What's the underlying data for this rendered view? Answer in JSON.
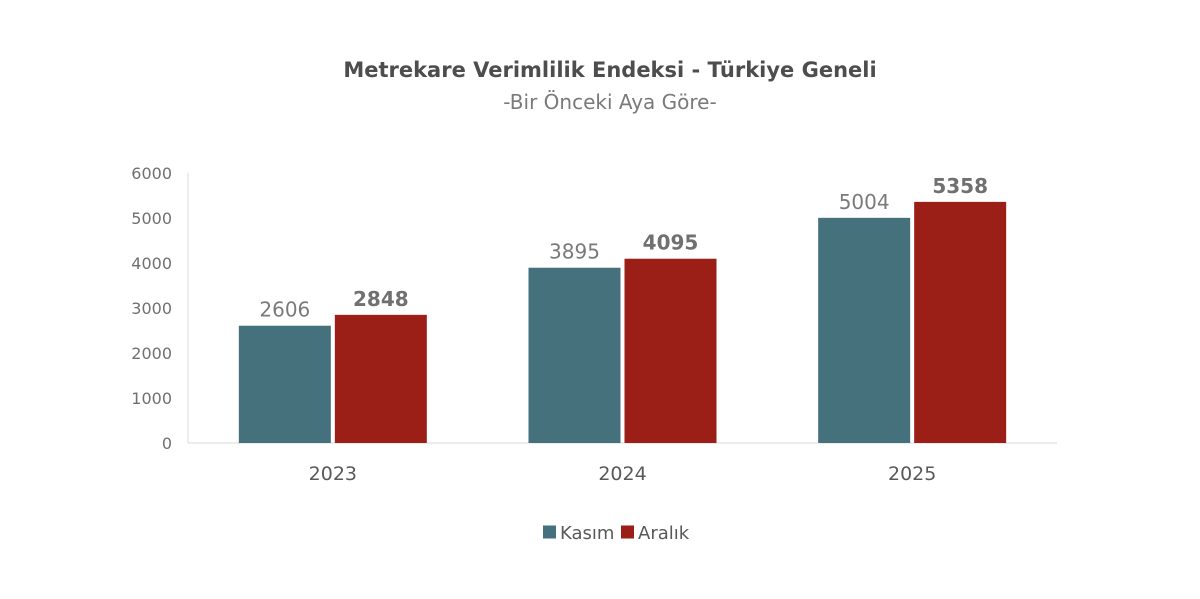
{
  "chart_data": {
    "type": "bar",
    "title": "Metrekare Verimlilik Endeksi - Türkiye Geneli",
    "subtitle": "-Bir Önceki Aya Göre-",
    "categories": [
      "2023",
      "2024",
      "2025"
    ],
    "series": [
      {
        "name": "Kasım",
        "values": [
          2606,
          3895,
          5004
        ],
        "color": "#44717c",
        "label_bold": false
      },
      {
        "name": "Aralık",
        "values": [
          2848,
          4095,
          5358
        ],
        "color": "#9b1f16",
        "label_bold": true
      }
    ],
    "ylim": [
      0,
      6000
    ],
    "yticks": [
      0,
      1000,
      2000,
      3000,
      4000,
      5000,
      6000
    ],
    "xlabel": "",
    "ylabel": "",
    "grid": false,
    "legend": "bottom-center"
  }
}
